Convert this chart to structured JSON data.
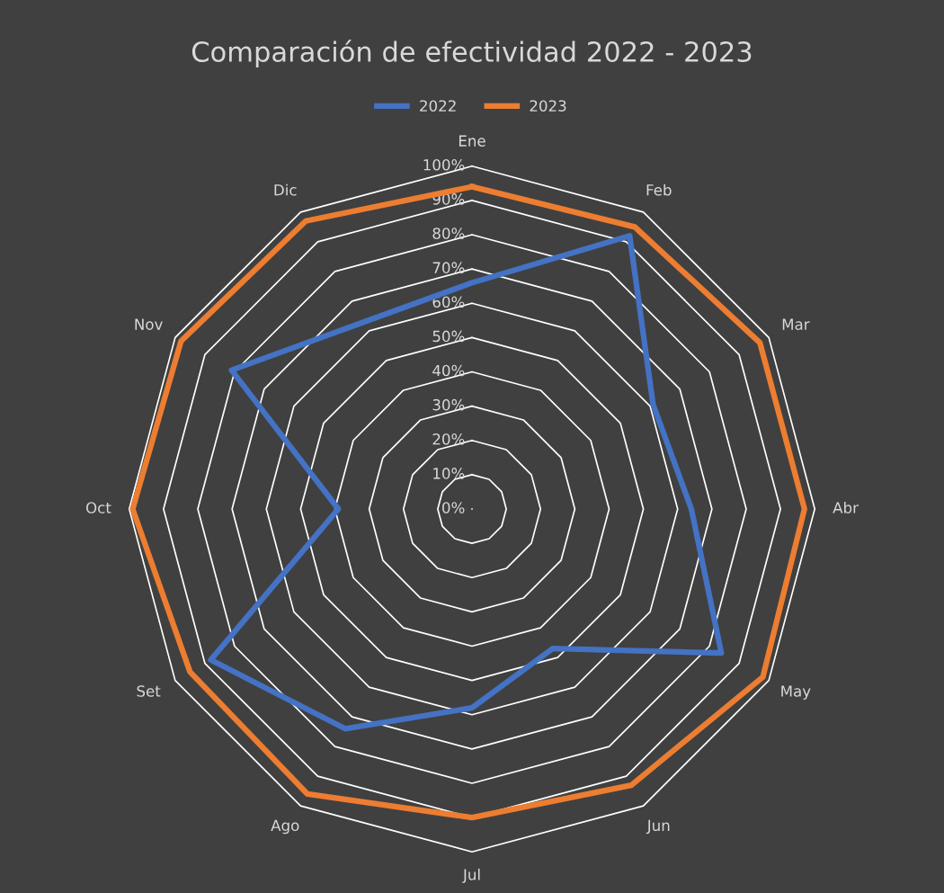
{
  "chart_data": {
    "type": "radar",
    "title": "Comparación de efectividad 2022 - 2023",
    "categories": [
      "Ene",
      "Feb",
      "Mar",
      "Abr",
      "May",
      "Jun",
      "Jul",
      "Ago",
      "Set",
      "Oct",
      "Nov",
      "Dic"
    ],
    "series": [
      {
        "name": "2022",
        "color": "#4472c4",
        "values": [
          66,
          92,
          61,
          64,
          84,
          47,
          58,
          74,
          88,
          39,
          81,
          63
        ]
      },
      {
        "name": "2023",
        "color": "#ed7d31",
        "values": [
          94,
          95,
          97,
          97,
          98,
          93,
          90,
          96,
          95,
          99,
          98,
          97
        ]
      }
    ],
    "ylim": [
      0,
      100
    ],
    "yticks": [
      {
        "value": 0,
        "label": "0%"
      },
      {
        "value": 10,
        "label": "10%"
      },
      {
        "value": 20,
        "label": "20%"
      },
      {
        "value": 30,
        "label": "30%"
      },
      {
        "value": 40,
        "label": "40%"
      },
      {
        "value": 50,
        "label": "50%"
      },
      {
        "value": 60,
        "label": "60%"
      },
      {
        "value": 70,
        "label": "70%"
      },
      {
        "value": 80,
        "label": "80%"
      },
      {
        "value": 90,
        "label": "90%"
      },
      {
        "value": 100,
        "label": "100%"
      }
    ],
    "grid": true,
    "legend": "top"
  }
}
